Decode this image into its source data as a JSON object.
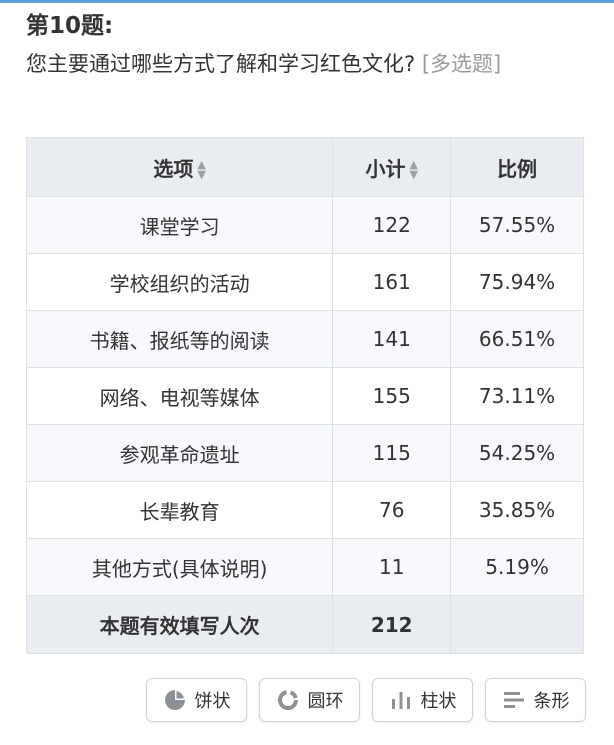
{
  "question": {
    "number_label": "第10题:",
    "text": "您主要通过哪些方式了解和学习红色文化?",
    "tag": "[多选题]"
  },
  "table": {
    "headers": {
      "option": "选项",
      "count": "小计",
      "ratio": "比例"
    },
    "rows": [
      {
        "option": "课堂学习",
        "count": "122",
        "ratio": "57.55%"
      },
      {
        "option": "学校组织的活动",
        "count": "161",
        "ratio": "75.94%"
      },
      {
        "option": "书籍、报纸等的阅读",
        "count": "141",
        "ratio": "66.51%"
      },
      {
        "option": "网络、电视等媒体",
        "count": "155",
        "ratio": "73.11%"
      },
      {
        "option": "参观革命遗址",
        "count": "115",
        "ratio": "54.25%"
      },
      {
        "option": "长辈教育",
        "count": "76",
        "ratio": "35.85%"
      },
      {
        "option": "其他方式(具体说明)",
        "count": "11",
        "ratio": "5.19%"
      }
    ],
    "footer": {
      "label": "本题有效填写人次",
      "count": "212",
      "ratio": ""
    }
  },
  "chart_buttons": [
    {
      "label": "饼状",
      "icon": "pie-chart-icon"
    },
    {
      "label": "圆环",
      "icon": "donut-chart-icon"
    },
    {
      "label": "柱状",
      "icon": "bar-chart-icon"
    },
    {
      "label": "条形",
      "icon": "horizontal-bar-icon"
    }
  ],
  "colors": {
    "accent_line": "#5aa3d8",
    "header_bg": "#e9ecf0",
    "tag_gray": "#9a9a9a"
  }
}
